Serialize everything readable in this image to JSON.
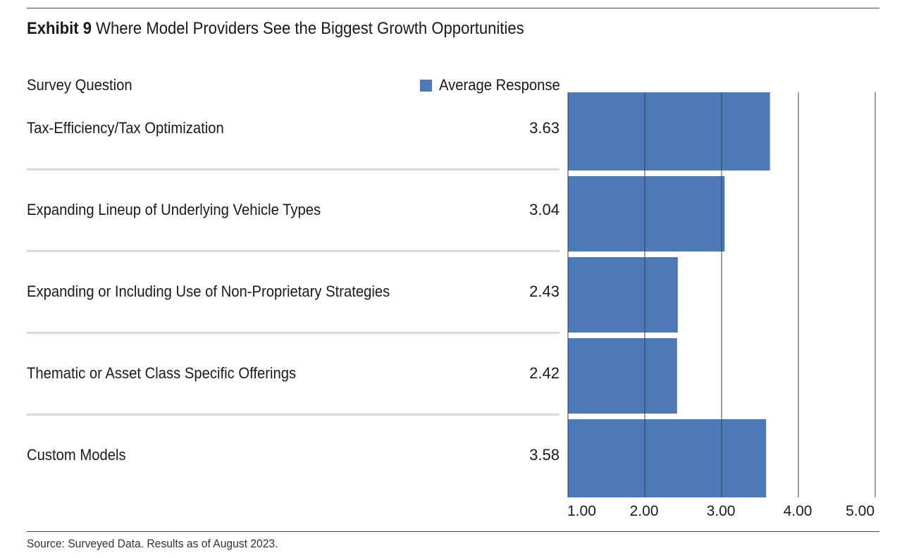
{
  "title": {
    "exhibit": "Exhibit 9",
    "text": "Where Model Providers See the Biggest Growth Opportunities"
  },
  "column_header": "Survey Question",
  "legend": {
    "label": "Average Response",
    "color": "#4e79b8"
  },
  "source": "Source: Surveyed Data. Results as of August 2023.",
  "chart_data": {
    "type": "bar",
    "orientation": "horizontal",
    "categories": [
      "Tax-Efficiency/Tax Optimization",
      "Expanding Lineup of Underlying Vehicle Types",
      "Expanding or Including Use of Non-Proprietary Strategies",
      "Thematic or Asset Class Specific Offerings",
      "Custom Models"
    ],
    "series": [
      {
        "name": "Average Response",
        "values": [
          3.63,
          3.04,
          2.43,
          2.42,
          3.58
        ],
        "color": "#4e79b8"
      }
    ],
    "value_labels": [
      "3.63",
      "3.04",
      "2.43",
      "2.42",
      "3.58"
    ],
    "xlim": [
      1.0,
      5.0
    ],
    "x_ticks": [
      1.0,
      2.0,
      3.0,
      4.0,
      5.0
    ],
    "x_tick_labels": [
      "1.00",
      "2.00",
      "3.00",
      "4.00",
      "5.00"
    ],
    "grid": true,
    "legend_position": "top"
  }
}
